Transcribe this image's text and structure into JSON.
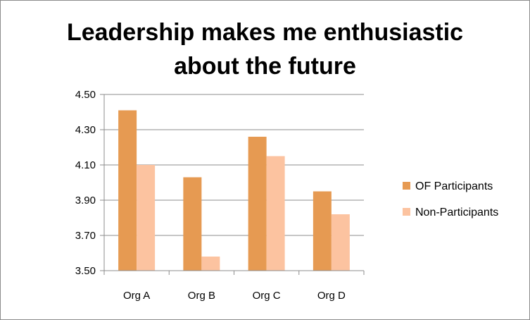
{
  "chart_data": {
    "type": "bar",
    "title_lines": [
      "Leadership makes me enthusiastic",
      "about the future"
    ],
    "categories": [
      "Org A",
      "Org B",
      "Org C",
      "Org D"
    ],
    "series": [
      {
        "name": "OF Participants",
        "color": "#E69A52",
        "values": [
          4.41,
          4.03,
          4.26,
          3.95
        ]
      },
      {
        "name": "Non-Participants",
        "color": "#FCC3A0",
        "values": [
          4.1,
          3.58,
          4.15,
          3.82
        ]
      }
    ],
    "ylim": [
      3.5,
      4.5
    ],
    "yticks": [
      "3.50",
      "3.70",
      "3.90",
      "4.10",
      "4.30",
      "4.50"
    ],
    "grid": true,
    "legend_position": "right"
  }
}
